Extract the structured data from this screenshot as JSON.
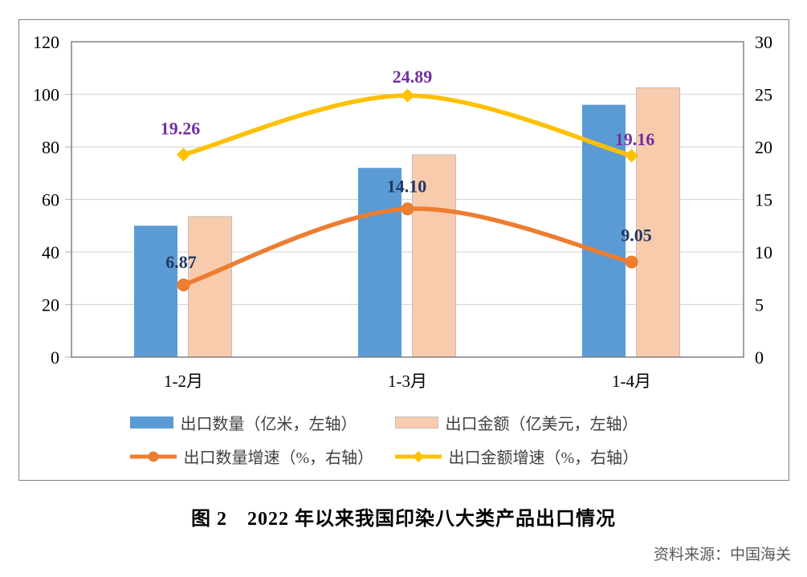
{
  "figure": {
    "caption": "图 2　2022 年以来我国印染八大类产品出口情况",
    "source": "资料来源：中国海关"
  },
  "legend": {
    "items": [
      {
        "label": "出口数量（亿米，左轴）",
        "type": "bar",
        "color": "#5B9BD5",
        "border_color": "#5B9BD5"
      },
      {
        "label": "出口金额（亿美元，左轴）",
        "type": "bar",
        "color": "#F8CBAD",
        "border_color": "#BFBFBF"
      },
      {
        "label": "出口数量增速（%，右轴）",
        "type": "line",
        "marker": "circle",
        "color": "#ED7D31"
      },
      {
        "label": "出口金额增速（%，右轴）",
        "type": "line",
        "marker": "diamond",
        "color": "#FFC000"
      }
    ]
  },
  "chart_data": {
    "type": "combo",
    "title": "图 2　2022 年以来我国印染八大类产品出口情况",
    "categories": [
      "1-2月",
      "1-3月",
      "1-4月"
    ],
    "series": [
      {
        "name": "出口数量（亿米，左轴）",
        "type": "bar",
        "axis": "left",
        "color": "#5B9BD5",
        "values": [
          50,
          72,
          96
        ]
      },
      {
        "name": "出口金额（亿美元，左轴）",
        "type": "bar",
        "axis": "left",
        "color": "#F8CBAD",
        "border_color": "#BFBFBF",
        "values": [
          53.5,
          77,
          102.5
        ]
      },
      {
        "name": "出口数量增速（%，右轴）",
        "type": "line",
        "axis": "right",
        "color": "#ED7D31",
        "marker": "circle",
        "values": [
          6.87,
          14.1,
          9.05
        ],
        "data_labels": [
          "6.87",
          "14.10",
          "9.05"
        ],
        "label_color": "#1F3864"
      },
      {
        "name": "出口金额增速（%，右轴）",
        "type": "line",
        "axis": "right",
        "color": "#FFC000",
        "marker": "diamond",
        "values": [
          19.26,
          24.89,
          19.16
        ],
        "data_labels": [
          "19.26",
          "24.89",
          "19.16"
        ],
        "label_color": "#7030A0"
      }
    ],
    "left_axis": {
      "min": 0,
      "max": 120,
      "step": 20,
      "ticks": [
        0,
        20,
        40,
        60,
        80,
        100,
        120
      ]
    },
    "right_axis": {
      "min": 0,
      "max": 30,
      "step": 5,
      "ticks": [
        0,
        5,
        10,
        15,
        20,
        25,
        30
      ]
    },
    "grid": true,
    "legend_position": "bottom"
  },
  "colors": {
    "grid_line": "#D9D9D9",
    "axis_tick": "#BFBFBF",
    "plot_border": "#808080",
    "frame_border": "#808080",
    "axis_text": "#000000",
    "source_text": "#595959"
  }
}
